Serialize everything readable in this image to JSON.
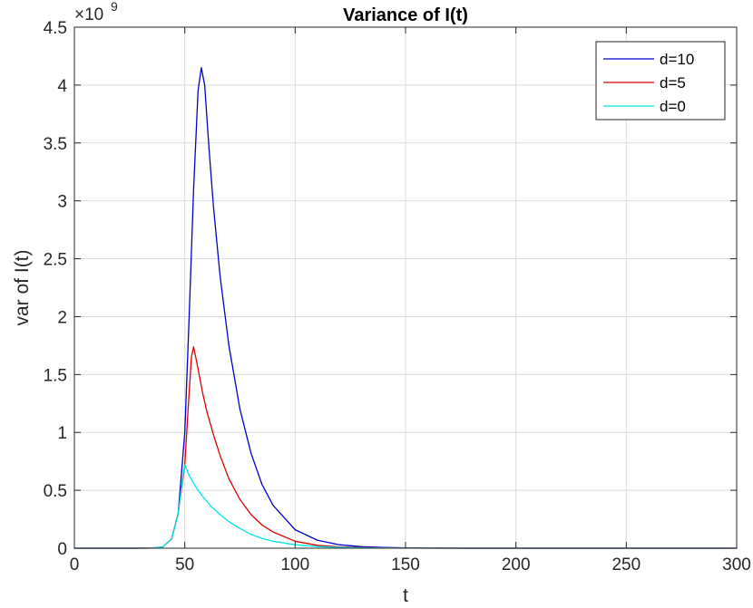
{
  "chart_data": {
    "type": "line",
    "title": "Variance of I(t)",
    "xlabel": "t",
    "ylabel": "var of I(t)",
    "y_exponent_base": "×10",
    "y_exponent_power": "9",
    "xlim": [
      0,
      300
    ],
    "ylim": [
      0,
      4.5
    ],
    "y_scale_factor": 1000000000,
    "x_ticks": [
      0,
      50,
      100,
      150,
      200,
      250,
      300
    ],
    "x_tick_labels": [
      "0",
      "50",
      "100",
      "150",
      "200",
      "250",
      "300"
    ],
    "y_ticks": [
      0,
      0.5,
      1,
      1.5,
      2,
      2.5,
      3,
      3.5,
      4,
      4.5
    ],
    "y_tick_labels": [
      "0",
      "0.5",
      "1",
      "1.5",
      "2",
      "2.5",
      "3",
      "3.5",
      "4",
      "4.5"
    ],
    "grid": true,
    "legend_position": "top-right",
    "series": [
      {
        "name": "d=10",
        "color": "#0000cc",
        "x": [
          0,
          30,
          35,
          40,
          44,
          47,
          50,
          52,
          54,
          56,
          57.5,
          59,
          61,
          63,
          66,
          70,
          75,
          80,
          85,
          90,
          100,
          110,
          120,
          130,
          140,
          150,
          160,
          180,
          200,
          250,
          300
        ],
        "y": [
          0,
          0,
          0.0005,
          0.01,
          0.08,
          0.3,
          1.0,
          2.0,
          3.1,
          3.95,
          4.15,
          4.0,
          3.45,
          2.95,
          2.35,
          1.75,
          1.2,
          0.82,
          0.55,
          0.37,
          0.16,
          0.07,
          0.03,
          0.013,
          0.006,
          0.002,
          0.001,
          0,
          0,
          0,
          0
        ]
      },
      {
        "name": "d=5",
        "color": "#dd0000",
        "x": [
          0,
          30,
          35,
          40,
          44,
          47,
          50,
          51.5,
          53,
          54,
          56,
          58,
          60,
          63,
          66,
          70,
          75,
          80,
          85,
          90,
          100,
          110,
          120,
          130,
          140,
          150,
          170,
          200,
          250,
          300
        ],
        "y": [
          0,
          0,
          0.0005,
          0.01,
          0.08,
          0.3,
          0.72,
          1.2,
          1.65,
          1.74,
          1.55,
          1.35,
          1.18,
          0.98,
          0.8,
          0.6,
          0.42,
          0.29,
          0.2,
          0.14,
          0.06,
          0.025,
          0.011,
          0.005,
          0.002,
          0.001,
          0,
          0,
          0,
          0
        ]
      },
      {
        "name": "d=0",
        "color": "#00e5e5",
        "x": [
          0,
          30,
          35,
          40,
          44,
          47,
          49,
          50,
          52,
          55,
          58,
          62,
          66,
          70,
          75,
          80,
          85,
          90,
          100,
          110,
          120,
          130,
          140,
          150,
          170,
          200,
          250,
          300
        ],
        "y": [
          0,
          0,
          0.0005,
          0.01,
          0.08,
          0.3,
          0.6,
          0.72,
          0.63,
          0.53,
          0.45,
          0.36,
          0.29,
          0.23,
          0.17,
          0.12,
          0.085,
          0.06,
          0.03,
          0.014,
          0.007,
          0.003,
          0.0015,
          0.0007,
          0,
          0,
          0,
          0
        ]
      }
    ]
  }
}
